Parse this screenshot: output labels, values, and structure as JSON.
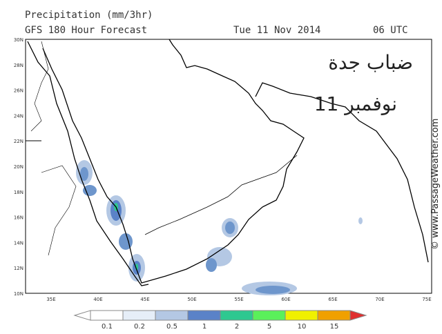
{
  "header": {
    "title": "Precipitation (mm/3hr)",
    "subtitle": "GFS 180 Hour Forecast",
    "date": "Tue 11 Nov 2014",
    "time": "06 UTC"
  },
  "lat_labels": [
    "30N",
    "28N",
    "26N",
    "24N",
    "22N",
    "20N",
    "18N",
    "16N",
    "14N",
    "12N",
    "10N"
  ],
  "lon_labels": [
    "35E",
    "40E",
    "45E",
    "50E",
    "55E",
    "60E",
    "65E",
    "70E",
    "75E"
  ],
  "colorbar_labels": [
    "0.1",
    "0.2",
    "0.5",
    "1",
    "2",
    "5",
    "10",
    "15"
  ],
  "annotation": {
    "line1": "ضباب جدة",
    "line2": "11 نوفمبر"
  },
  "watermark": "© www.PassageWeather.com"
}
